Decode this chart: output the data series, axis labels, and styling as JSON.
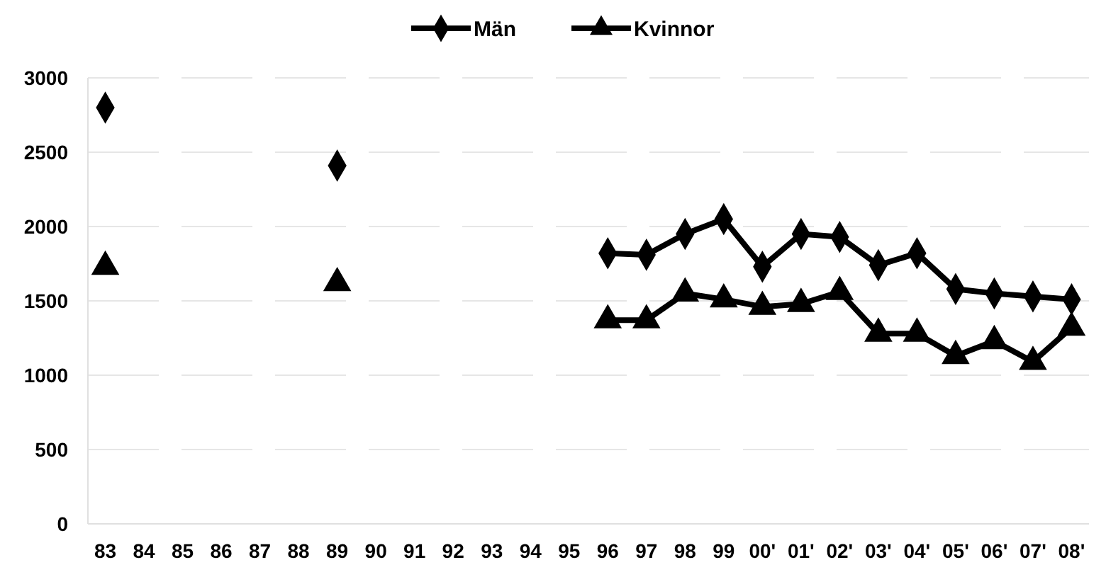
{
  "chart_data": {
    "type": "line",
    "categories": [
      "83",
      "84",
      "85",
      "86",
      "87",
      "88",
      "89",
      "90",
      "91",
      "92",
      "93",
      "94",
      "95",
      "96",
      "97",
      "98",
      "99",
      "00'",
      "01'",
      "02'",
      "03'",
      "04'",
      "05'",
      "06'",
      "07'",
      "08'"
    ],
    "series": [
      {
        "name": "Män",
        "color": "#000000",
        "marker": "diamond",
        "values": [
          2800,
          null,
          null,
          null,
          null,
          null,
          2410,
          null,
          null,
          null,
          null,
          null,
          null,
          1820,
          1810,
          1950,
          2050,
          1730,
          1950,
          1930,
          1740,
          1820,
          1580,
          1550,
          1530,
          1510
        ]
      },
      {
        "name": "Kvinnor",
        "color": "#000000",
        "marker": "triangle",
        "values": [
          1730,
          null,
          null,
          null,
          null,
          null,
          1620,
          null,
          null,
          null,
          null,
          null,
          null,
          1370,
          1370,
          1550,
          1510,
          1460,
          1480,
          1560,
          1280,
          1280,
          1130,
          1230,
          1090,
          1320
        ]
      }
    ],
    "ylim": [
      0,
      3000
    ],
    "yticks": [
      0,
      500,
      1000,
      1500,
      2000,
      2500,
      3000
    ],
    "grid": "y",
    "legend": "top",
    "line_style": "solid"
  }
}
